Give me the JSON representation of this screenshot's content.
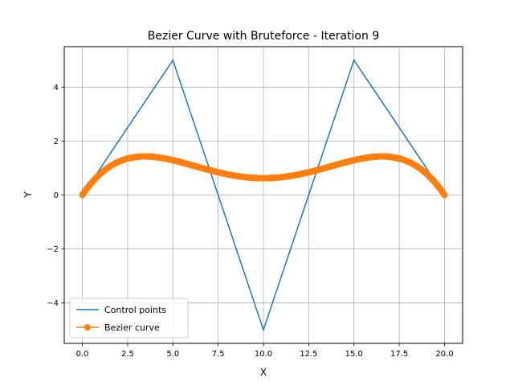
{
  "chart_data": {
    "type": "line",
    "title": "Bezier Curve with Bruteforce - Iteration 9",
    "xlabel": "X",
    "ylabel": "Y",
    "xlim": [
      -1,
      21
    ],
    "ylim": [
      -5.5,
      5.5
    ],
    "xticks": [
      0,
      2.5,
      5,
      7.5,
      10,
      12.5,
      15,
      17.5,
      20
    ],
    "xtick_labels": [
      "0.0",
      "2.5",
      "5.0",
      "7.5",
      "10.0",
      "12.5",
      "15.0",
      "17.5",
      "20.0"
    ],
    "yticks": [
      -4,
      -2,
      0,
      2,
      4
    ],
    "ytick_labels": [
      "−4",
      "−2",
      "0",
      "2",
      "4"
    ],
    "grid": true,
    "legend": "lower-left",
    "series": [
      {
        "name": "Control points",
        "color": "#1f77b4",
        "marker": "none",
        "x": [
          0,
          5,
          10,
          15,
          20
        ],
        "y": [
          0,
          5,
          -5,
          5,
          0
        ]
      },
      {
        "name": "Bezier curve",
        "color": "#ff7f0e",
        "marker": "circle",
        "bezier_control_points": {
          "x": [
            0,
            5,
            10,
            15,
            20
          ],
          "y": [
            0,
            5,
            -5,
            5,
            0
          ]
        },
        "num_points": 513
      }
    ]
  }
}
